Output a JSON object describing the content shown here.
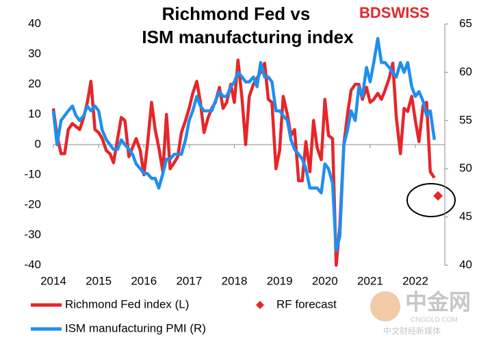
{
  "logo": "BDSWISS",
  "watermark": {
    "name": "中金网",
    "site": "CNGOLD.COM",
    "tagline": "中文财经新媒体"
  },
  "chart_data": {
    "type": "line",
    "title": [
      "Richmond Fed vs",
      "ISM manufacturing index"
    ],
    "x": [
      2014,
      2014.08,
      2014.17,
      2014.25,
      2014.33,
      2014.42,
      2014.5,
      2014.58,
      2014.67,
      2014.75,
      2014.83,
      2014.92,
      2015,
      2015.08,
      2015.17,
      2015.25,
      2015.33,
      2015.42,
      2015.5,
      2015.58,
      2015.67,
      2015.75,
      2015.83,
      2015.92,
      2016,
      2016.08,
      2016.17,
      2016.25,
      2016.33,
      2016.42,
      2016.5,
      2016.58,
      2016.67,
      2016.75,
      2016.83,
      2016.92,
      2017,
      2017.08,
      2017.17,
      2017.25,
      2017.33,
      2017.42,
      2017.5,
      2017.58,
      2017.67,
      2017.75,
      2017.83,
      2017.92,
      2018,
      2018.08,
      2018.17,
      2018.25,
      2018.33,
      2018.42,
      2018.5,
      2018.58,
      2018.67,
      2018.75,
      2018.83,
      2018.92,
      2019,
      2019.08,
      2019.17,
      2019.25,
      2019.33,
      2019.42,
      2019.5,
      2019.58,
      2019.67,
      2019.75,
      2019.83,
      2019.92,
      2020,
      2020.08,
      2020.17,
      2020.25,
      2020.33,
      2020.42,
      2020.5,
      2020.58,
      2020.67,
      2020.75,
      2020.83,
      2020.92,
      2021,
      2021.08,
      2021.17,
      2021.25,
      2021.33,
      2021.42,
      2021.5,
      2021.58,
      2021.67,
      2021.75,
      2021.83,
      2021.92,
      2022,
      2022.08,
      2022.17,
      2022.25,
      2022.33,
      2022.42
    ],
    "series": [
      {
        "name": "Richmond Fed index (L)",
        "color": "#e5262a",
        "axis": "y",
        "values": [
          12,
          3,
          -3,
          -3,
          5,
          7,
          6,
          5,
          9,
          14,
          21,
          5,
          4,
          2,
          -2,
          -3,
          -6,
          2,
          9,
          8,
          -4,
          -1,
          2,
          -2,
          -10,
          0,
          14,
          5,
          -1,
          -9,
          10,
          -8,
          -6,
          -4,
          4,
          8,
          12,
          17,
          21,
          14,
          4,
          9,
          12,
          14,
          19,
          12,
          14,
          20,
          14,
          28,
          15,
          0,
          16,
          20,
          22,
          24,
          27,
          15,
          14,
          -8,
          -2,
          16,
          10,
          3,
          5,
          -12,
          -12,
          1,
          -9,
          8,
          -1,
          -5,
          15,
          3,
          2,
          -40,
          -27,
          0,
          10,
          18,
          20,
          20,
          15,
          19,
          14,
          15,
          17,
          15,
          18,
          22,
          27,
          9,
          -3,
          12,
          11,
          16,
          8,
          1,
          13,
          14,
          -9,
          -11
        ]
      },
      {
        "name": "RF forecast",
        "color": "#e5262a",
        "axis": "y",
        "marker": "diamond",
        "x": [
          2022.5
        ],
        "values": [
          -17
        ]
      },
      {
        "name": "ISM manufacturing PMI (R)",
        "color": "#1e8ff0",
        "axis": "y2",
        "values": [
          56,
          52.5,
          55,
          55.5,
          56,
          56.5,
          55.5,
          55,
          55.5,
          56.5,
          56,
          56.5,
          56,
          54,
          53,
          52.5,
          52,
          52,
          53,
          52.5,
          52,
          51.5,
          50.5,
          50,
          49.5,
          49.5,
          49,
          49,
          48,
          49.5,
          51,
          51,
          51.5,
          51.5,
          51.5,
          53,
          55,
          56,
          57.5,
          56.5,
          56,
          56,
          56,
          57,
          58,
          57.5,
          57.5,
          58.5,
          59,
          60,
          59.5,
          59,
          59,
          59.5,
          58.5,
          61,
          59.5,
          59.5,
          59,
          56,
          56,
          55.5,
          55,
          53,
          52,
          51.5,
          51,
          50,
          48,
          48,
          48,
          47.5,
          50.5,
          50,
          48.5,
          41.5,
          43,
          52.5,
          54,
          56,
          55,
          58.5,
          57.5,
          60.5,
          59,
          61,
          63.5,
          61,
          61,
          60.5,
          60,
          59.5,
          61,
          60,
          61,
          58.5,
          57.5,
          58,
          57,
          55.5,
          56,
          53
        ]
      }
    ],
    "xlim": [
      2014,
      2022.65
    ],
    "xticks": [
      2014,
      2015,
      2016,
      2017,
      2018,
      2019,
      2020,
      2021,
      2022
    ],
    "ylim": [
      -40,
      40
    ],
    "yticks": [
      -40,
      -30,
      -20,
      -10,
      0,
      10,
      20,
      30,
      40
    ],
    "y2lim": [
      40,
      65
    ],
    "y2ticks": [
      40,
      45,
      50,
      55,
      60,
      65
    ],
    "grid": false
  }
}
